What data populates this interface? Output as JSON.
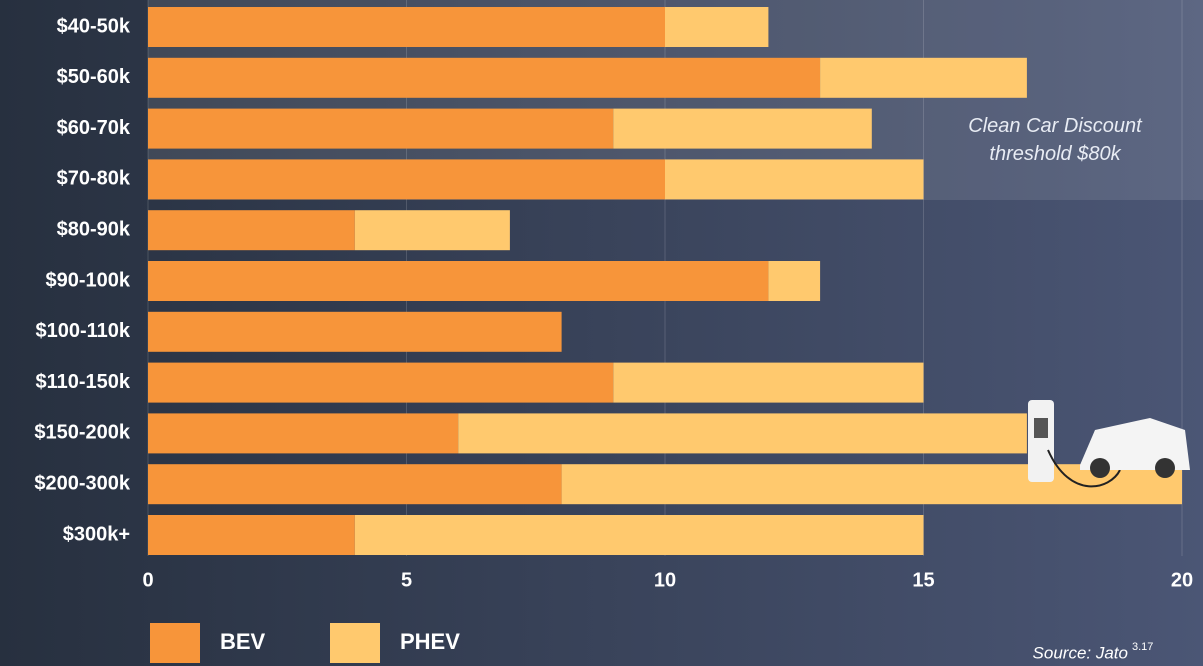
{
  "chart_data": {
    "type": "stacked-barh",
    "categories": [
      "$40-50k",
      "$50-60k",
      "$60-70k",
      "$70-80k",
      "$80-90k",
      "$90-100k",
      "$100-110k",
      "$110-150k",
      "$150-200k",
      "$200-300k",
      "$300k+"
    ],
    "series": [
      {
        "name": "BEV",
        "color": "#f7953a",
        "values": [
          10,
          13,
          9,
          10,
          4,
          12,
          8,
          9,
          6,
          8,
          4
        ]
      },
      {
        "name": "PHEV",
        "color": "#ffc96e",
        "values": [
          2,
          4,
          5,
          5,
          3,
          1,
          0,
          6,
          11,
          12,
          11
        ]
      }
    ],
    "xlim": [
      0,
      20
    ],
    "xticks": [
      0,
      5,
      10,
      15,
      20
    ],
    "grid": true,
    "annotation": "Clean Car Discount threshold $80k",
    "source": "Source: Jato",
    "footnote": "3.17"
  }
}
